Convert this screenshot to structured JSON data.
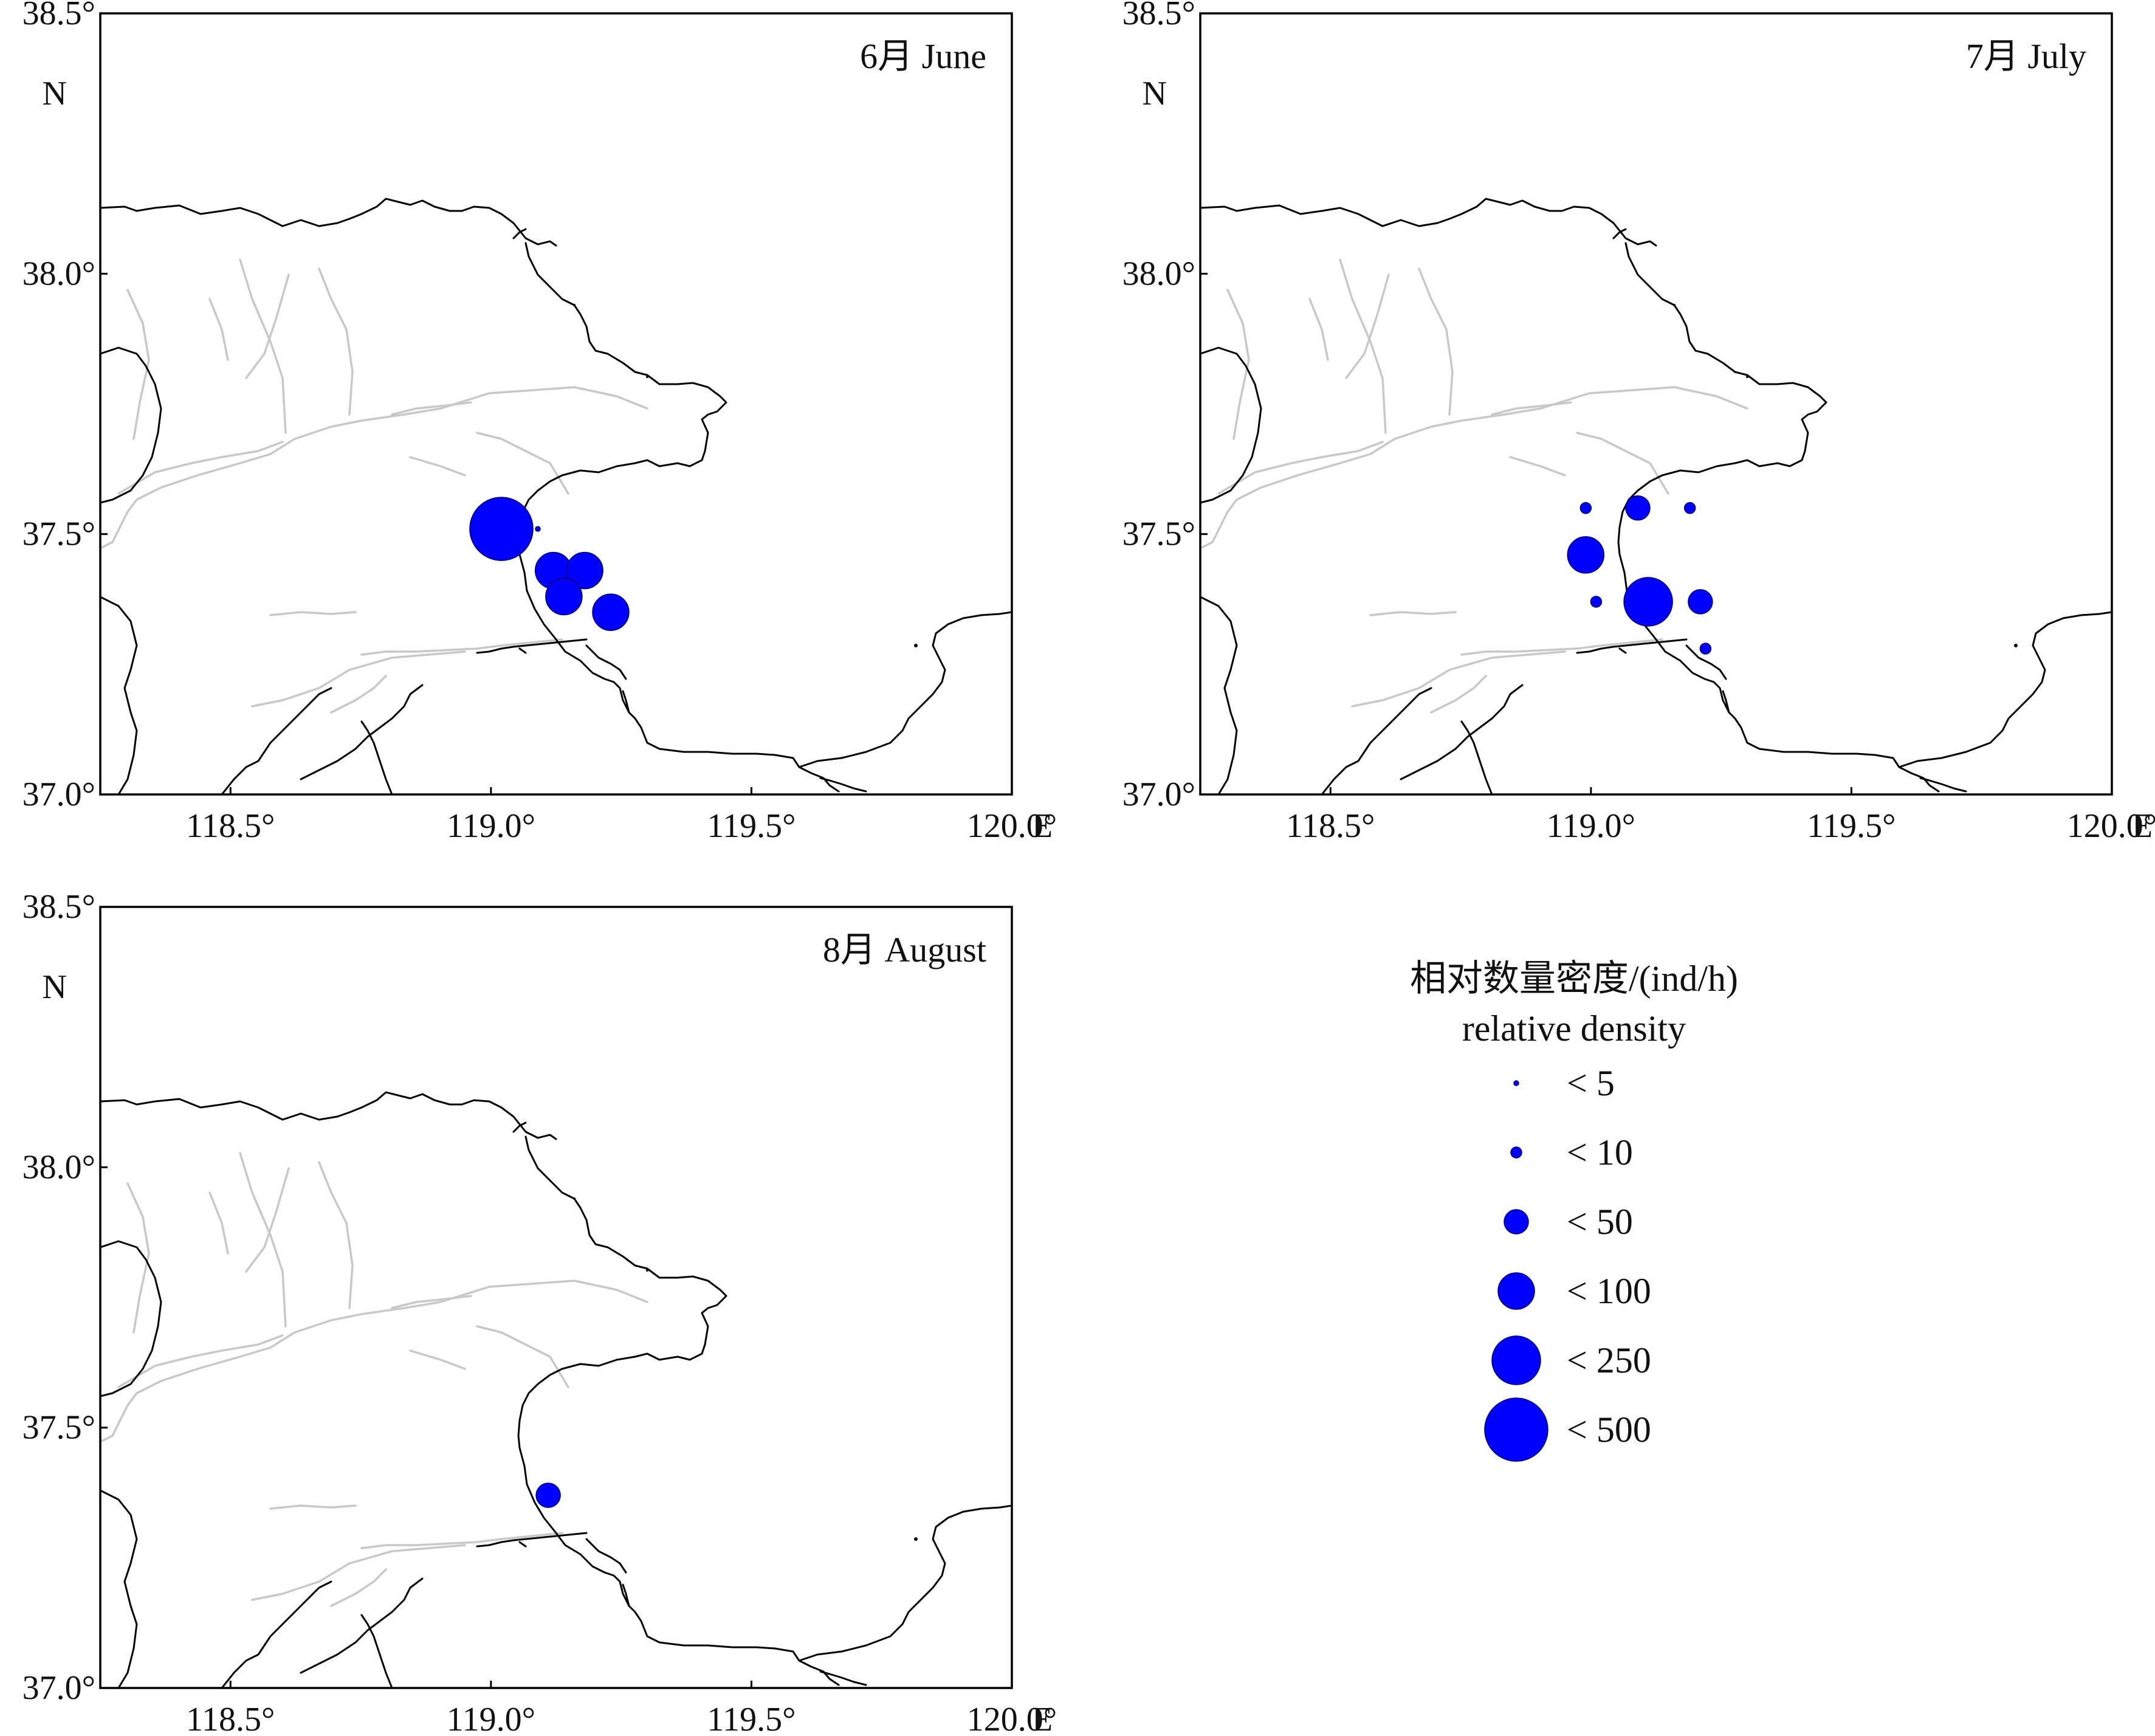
{
  "colors": {
    "marker": "#0000ff",
    "coast": "#000000",
    "river": "#c8c8c8"
  },
  "axes": {
    "lat_ticks": [
      "37.0°",
      "37.5°",
      "38.0°",
      "38.5°"
    ],
    "lon_ticks": [
      "118.5°",
      "119.0°",
      "119.5°",
      "120.0°"
    ],
    "lat_range": [
      37.0,
      38.5
    ],
    "lon_range": [
      118.25,
      120.0
    ],
    "north_label": "N",
    "east_label": "E"
  },
  "legend": {
    "title_cn": "相对数量密度/(ind/h)",
    "title_en": "relative density",
    "classes": [
      {
        "label": "< 5"
      },
      {
        "label": "< 10"
      },
      {
        "label": "< 50"
      },
      {
        "label": "< 100"
      },
      {
        "label": "< 250"
      },
      {
        "label": "< 500"
      }
    ]
  },
  "panels": [
    {
      "title": "6月  June",
      "stations": [
        {
          "lon": 119.02,
          "lat": 37.51,
          "size_class": 5
        },
        {
          "lon": 119.09,
          "lat": 37.51,
          "size_class": 0
        },
        {
          "lon": 119.12,
          "lat": 37.43,
          "size_class": 3
        },
        {
          "lon": 119.18,
          "lat": 37.43,
          "size_class": 3
        },
        {
          "lon": 119.14,
          "lat": 37.38,
          "size_class": 3
        },
        {
          "lon": 119.23,
          "lat": 37.35,
          "size_class": 3
        }
      ]
    },
    {
      "title": "7月  July",
      "stations": [
        {
          "lon": 118.99,
          "lat": 37.55,
          "size_class": 1
        },
        {
          "lon": 119.09,
          "lat": 37.55,
          "size_class": 2
        },
        {
          "lon": 119.19,
          "lat": 37.55,
          "size_class": 1
        },
        {
          "lon": 118.99,
          "lat": 37.46,
          "size_class": 3
        },
        {
          "lon": 119.01,
          "lat": 37.37,
          "size_class": 1
        },
        {
          "lon": 119.11,
          "lat": 37.37,
          "size_class": 4
        },
        {
          "lon": 119.21,
          "lat": 37.37,
          "size_class": 2
        },
        {
          "lon": 119.22,
          "lat": 37.28,
          "size_class": 1
        }
      ]
    },
    {
      "title": "8月  August",
      "stations": [
        {
          "lon": 119.11,
          "lat": 37.37,
          "size_class": 2
        }
      ]
    }
  ]
}
